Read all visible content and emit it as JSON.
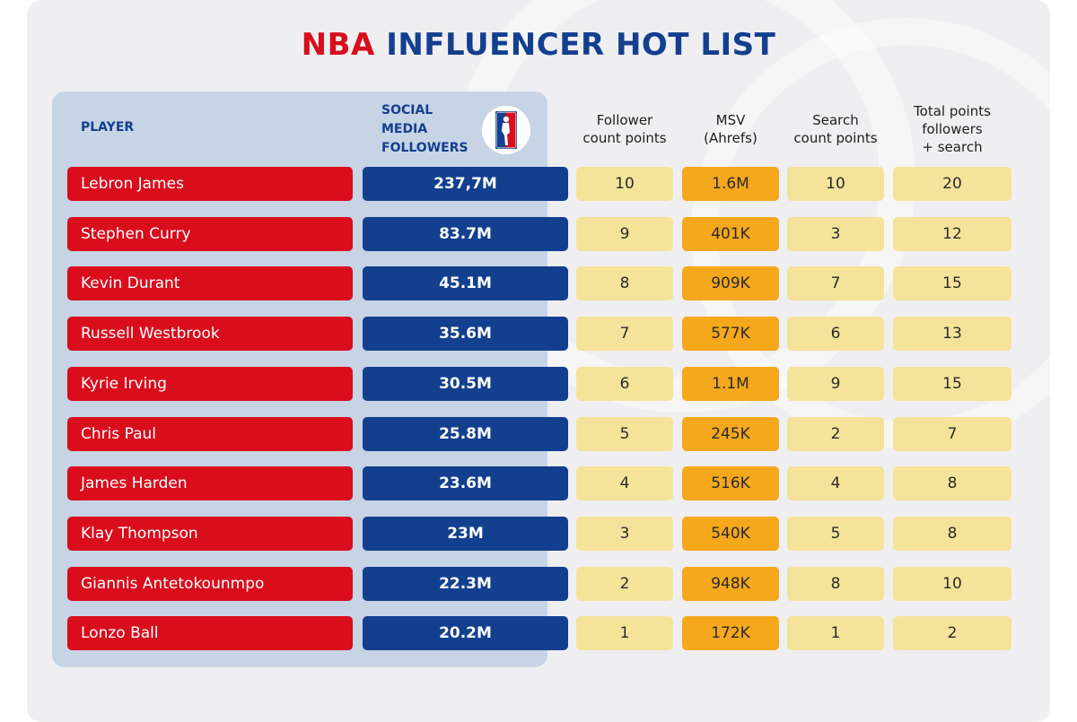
{
  "title": {
    "part1": "NBA",
    "part2": "INFLUENCER HOT LIST"
  },
  "colors": {
    "red": "#d90d1c",
    "blue": "#133f8f",
    "yellow": "#f6e39a",
    "orange": "#f5a81c"
  },
  "headers": {
    "player": "PLAYER",
    "social_line1": "SOCIAL",
    "social_line2": "MEDIA",
    "social_line3": "FOLLOWERS",
    "follower_line1": "Follower",
    "follower_line2": "count points",
    "msv_line1": "MSV",
    "msv_line2": "(Ahrefs)",
    "search_line1": "Search",
    "search_line2": "count points",
    "total_line1": "Total points",
    "total_line2": "followers",
    "total_line3": "+ search"
  },
  "logo_icon": "nba-logo-icon",
  "chart_data": {
    "type": "table",
    "title": "NBA INFLUENCER HOT LIST",
    "columns": [
      "PLAYER",
      "SOCIAL MEDIA FOLLOWERS",
      "Follower count points",
      "MSV (Ahrefs)",
      "Search count points",
      "Total points followers + search"
    ],
    "rows": [
      {
        "player": "Lebron James",
        "followers": "237,7M",
        "follower_points": "10",
        "msv": "1.6M",
        "search_points": "10",
        "total": "20"
      },
      {
        "player": "Stephen Curry",
        "followers": "83.7M",
        "follower_points": "9",
        "msv": "401K",
        "search_points": "3",
        "total": "12"
      },
      {
        "player": "Kevin Durant",
        "followers": "45.1M",
        "follower_points": "8",
        "msv": "909K",
        "search_points": "7",
        "total": "15"
      },
      {
        "player": "Russell Westbrook",
        "followers": "35.6M",
        "follower_points": "7",
        "msv": "577K",
        "search_points": "6",
        "total": "13"
      },
      {
        "player": "Kyrie Irving",
        "followers": "30.5M",
        "follower_points": "6",
        "msv": "1.1M",
        "search_points": "9",
        "total": "15"
      },
      {
        "player": "Chris Paul",
        "followers": "25.8M",
        "follower_points": "5",
        "msv": "245K",
        "search_points": "2",
        "total": "7"
      },
      {
        "player": "James Harden",
        "followers": "23.6M",
        "follower_points": "4",
        "msv": "516K",
        "search_points": "4",
        "total": "8"
      },
      {
        "player": "Klay Thompson",
        "followers": "23M",
        "follower_points": "3",
        "msv": "540K",
        "search_points": "5",
        "total": "8"
      },
      {
        "player": "Giannis Antetokounmpo",
        "followers": "22.3M",
        "follower_points": "2",
        "msv": "948K",
        "search_points": "8",
        "total": "10"
      },
      {
        "player": "Lonzo Ball",
        "followers": "20.2M",
        "follower_points": "1",
        "msv": "172K",
        "search_points": "1",
        "total": "2"
      }
    ]
  }
}
